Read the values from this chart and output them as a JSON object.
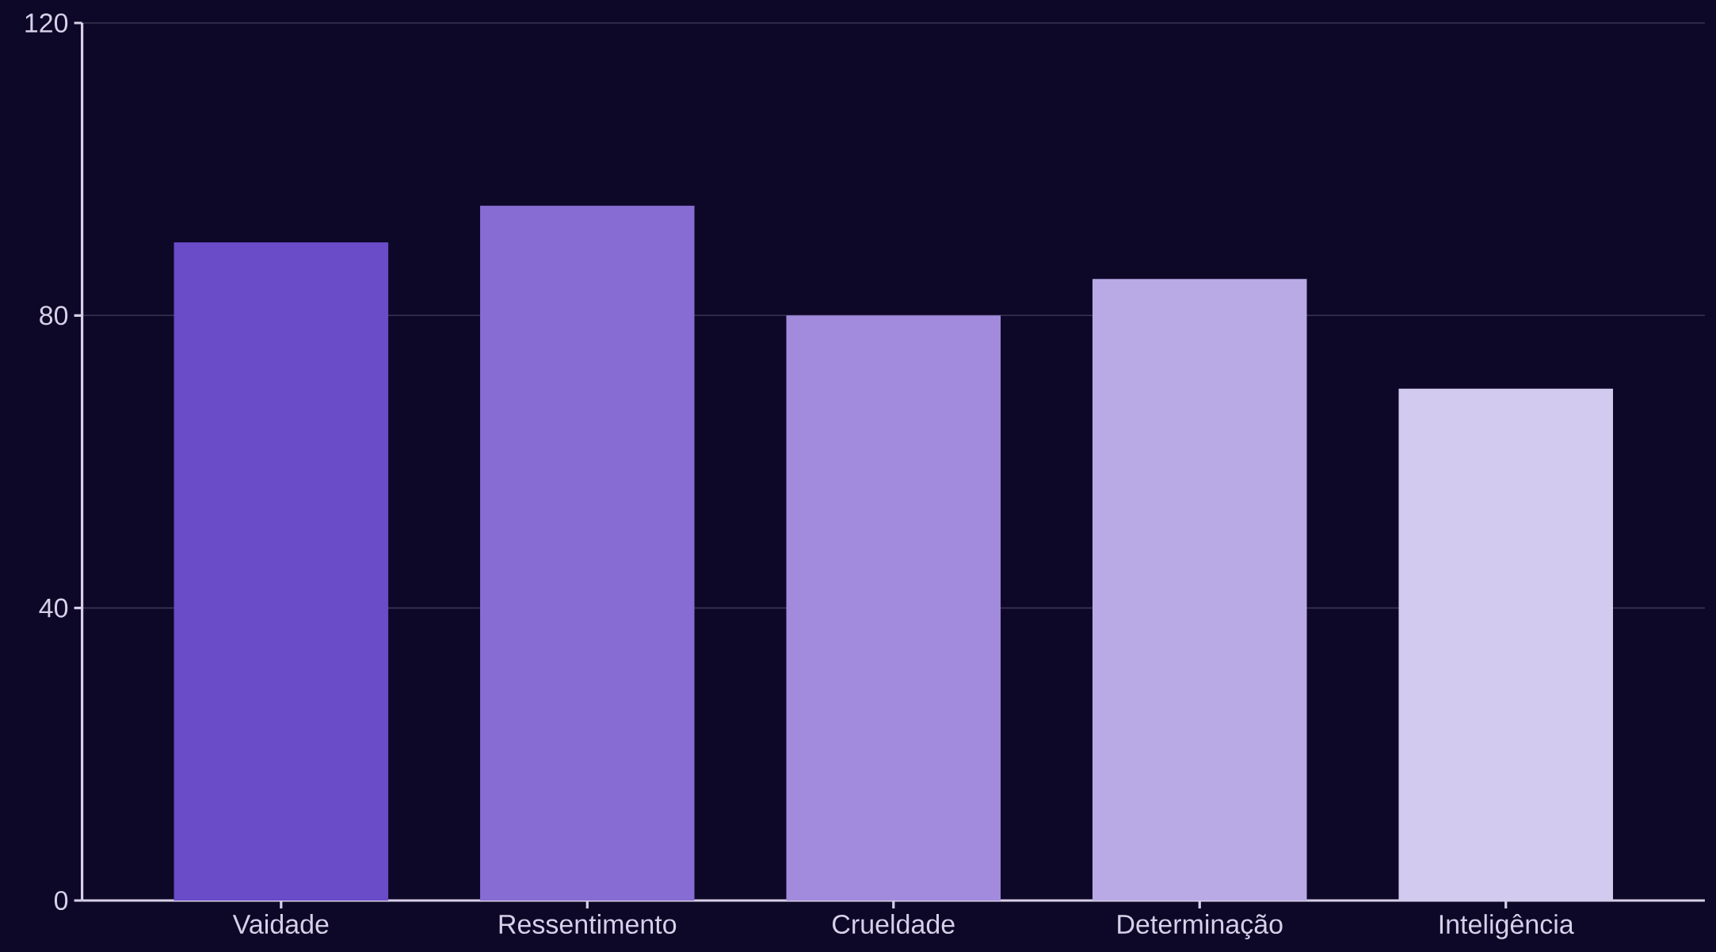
{
  "chart_data": {
    "type": "bar",
    "categories": [
      "Vaidade",
      "Ressentimento",
      "Crueldade",
      "Determinação",
      "Inteligência"
    ],
    "values": [
      90,
      95,
      80,
      85,
      70
    ],
    "colors": [
      "#6a4bc8",
      "#876cd4",
      "#a28bdd",
      "#b9aae6",
      "#d3caef"
    ],
    "ylim": [
      0,
      120
    ],
    "yticks": [
      0,
      40,
      80,
      120
    ],
    "grid": "y"
  }
}
